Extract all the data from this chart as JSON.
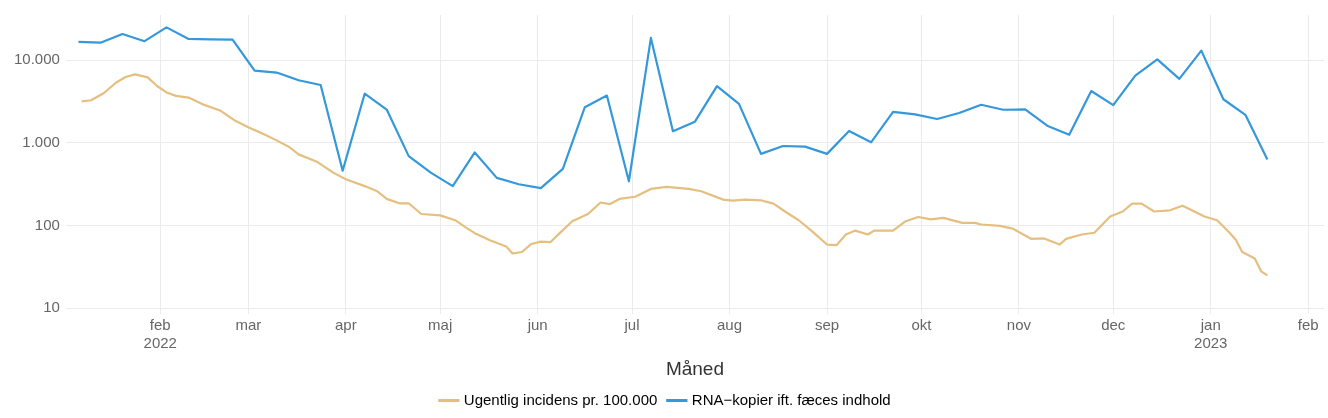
{
  "chart_data": {
    "type": "line",
    "xlabel": "Måned",
    "log": "y",
    "grid": true,
    "legend": "bottom",
    "marker": "none",
    "line_style": "solid",
    "xlim": [
      "2022-01-02",
      "2023-02-06"
    ],
    "xticks": [
      {
        "value": "2022-02-01",
        "label": "feb\n2022"
      },
      {
        "value": "2022-03-01",
        "label": "mar"
      },
      {
        "value": "2022-04-01",
        "label": "apr"
      },
      {
        "value": "2022-05-01",
        "label": "maj"
      },
      {
        "value": "2022-06-01",
        "label": "jun"
      },
      {
        "value": "2022-07-01",
        "label": "jul"
      },
      {
        "value": "2022-08-01",
        "label": "aug"
      },
      {
        "value": "2022-09-01",
        "label": "sep"
      },
      {
        "value": "2022-10-01",
        "label": "okt"
      },
      {
        "value": "2022-11-01",
        "label": "nov"
      },
      {
        "value": "2022-12-01",
        "label": "dec"
      },
      {
        "value": "2023-01-01",
        "label": "jan\n2023"
      },
      {
        "value": "2023-02-01",
        "label": "feb"
      }
    ],
    "ylim": [
      8.5,
      35000
    ],
    "yticks": [
      10,
      100,
      {
        "value": 1000,
        "label": "1.000"
      },
      {
        "value": 10000,
        "label": "10.000"
      }
    ],
    "series": [
      {
        "name": "Ugentlig incidens pr. 100.000",
        "color": "#e5bf80",
        "x": [
          "2022-01-07",
          "2022-01-10",
          "2022-01-14",
          "2022-01-18",
          "2022-01-21",
          "2022-01-24",
          "2022-01-28",
          "2022-01-31",
          "2022-02-03",
          "2022-02-06",
          "2022-02-10",
          "2022-02-15",
          "2022-02-20",
          "2022-02-25",
          "2022-03-01",
          "2022-03-06",
          "2022-03-10",
          "2022-03-14",
          "2022-03-17",
          "2022-03-23",
          "2022-03-28",
          "2022-04-01",
          "2022-04-07",
          "2022-04-11",
          "2022-04-14",
          "2022-04-18",
          "2022-04-21",
          "2022-04-25",
          "2022-05-01",
          "2022-05-06",
          "2022-05-09",
          "2022-05-12",
          "2022-05-17",
          "2022-05-22",
          "2022-05-24",
          "2022-05-27",
          "2022-05-30",
          "2022-06-02",
          "2022-06-05",
          "2022-06-08",
          "2022-06-12",
          "2022-06-17",
          "2022-06-21",
          "2022-06-24",
          "2022-06-27",
          "2022-07-02",
          "2022-07-07",
          "2022-07-12",
          "2022-07-19",
          "2022-07-23",
          "2022-07-30",
          "2022-08-02",
          "2022-08-06",
          "2022-08-11",
          "2022-08-15",
          "2022-08-19",
          "2022-08-23",
          "2022-08-27",
          "2022-09-01",
          "2022-09-04",
          "2022-09-07",
          "2022-09-10",
          "2022-09-14",
          "2022-09-16",
          "2022-09-22",
          "2022-09-26",
          "2022-09-30",
          "2022-10-04",
          "2022-10-08",
          "2022-10-14",
          "2022-10-18",
          "2022-10-20",
          "2022-10-26",
          "2022-10-30",
          "2022-11-05",
          "2022-11-09",
          "2022-11-14",
          "2022-11-16",
          "2022-11-21",
          "2022-11-25",
          "2022-11-30",
          "2022-12-04",
          "2022-12-07",
          "2022-12-10",
          "2022-12-14",
          "2022-12-19",
          "2022-12-23",
          "2022-12-26",
          "2022-12-30",
          "2023-01-03",
          "2023-01-07",
          "2023-01-09",
          "2023-01-11",
          "2023-01-15",
          "2023-01-17",
          "2023-01-19"
        ],
        "values": [
          3160,
          3270,
          3970,
          5350,
          6240,
          6710,
          6170,
          4860,
          4060,
          3690,
          3520,
          2870,
          2460,
          1830,
          1540,
          1270,
          1070,
          890,
          725,
          585,
          436,
          362,
          300,
          260,
          210,
          186,
          186,
          138,
          133,
          115,
          96,
          81,
          66,
          56,
          46,
          48,
          60,
          64,
          63,
          81,
          113,
          138,
          190,
          182,
          210,
          223,
          277,
          293,
          277,
          260,
          206,
          200,
          206,
          202,
          184,
          145,
          116,
          87,
          59,
          58,
          78,
          87,
          78,
          87,
          87,
          113,
          127,
          119,
          124,
          108,
          108,
          103,
          99,
          92,
          69,
          70,
          59,
          69,
          78,
          82,
          129,
          148,
          184,
          184,
          148,
          153,
          174,
          153,
          129,
          116,
          82,
          67,
          48,
          40,
          28,
          25
        ]
      },
      {
        "name": "RNA−kopier ift. fæces indhold",
        "color": "#3498db",
        "x": [
          "2022-01-06",
          "2022-01-13",
          "2022-01-20",
          "2022-01-27",
          "2022-02-03",
          "2022-02-10",
          "2022-02-17",
          "2022-02-24",
          "2022-03-03",
          "2022-03-10",
          "2022-03-17",
          "2022-03-24",
          "2022-03-31",
          "2022-04-07",
          "2022-04-14",
          "2022-04-21",
          "2022-04-28",
          "2022-05-05",
          "2022-05-12",
          "2022-05-19",
          "2022-05-26",
          "2022-06-02",
          "2022-06-09",
          "2022-06-16",
          "2022-06-23",
          "2022-06-30",
          "2022-07-07",
          "2022-07-14",
          "2022-07-21",
          "2022-07-28",
          "2022-08-04",
          "2022-08-11",
          "2022-08-18",
          "2022-08-25",
          "2022-09-01",
          "2022-09-08",
          "2022-09-15",
          "2022-09-22",
          "2022-09-29",
          "2022-10-06",
          "2022-10-13",
          "2022-10-20",
          "2022-10-27",
          "2022-11-03",
          "2022-11-10",
          "2022-11-17",
          "2022-11-24",
          "2022-12-01",
          "2022-12-08",
          "2022-12-15",
          "2022-12-22",
          "2022-12-29",
          "2023-01-05",
          "2023-01-12",
          "2023-01-19"
        ],
        "values": [
          16600,
          16200,
          20600,
          16900,
          24800,
          18000,
          17800,
          17600,
          7450,
          7060,
          5700,
          4990,
          460,
          3920,
          2520,
          690,
          437,
          300,
          765,
          377,
          316,
          284,
          485,
          2690,
          3720,
          343,
          18500,
          1380,
          1800,
          4850,
          2950,
          735,
          915,
          900,
          735,
          1390,
          1015,
          2370,
          2210,
          1940,
          2290,
          2880,
          2510,
          2530,
          1610,
          1250,
          4220,
          2850,
          6490,
          10200,
          5920,
          13000,
          3360,
          2180,
          630
        ]
      }
    ]
  }
}
